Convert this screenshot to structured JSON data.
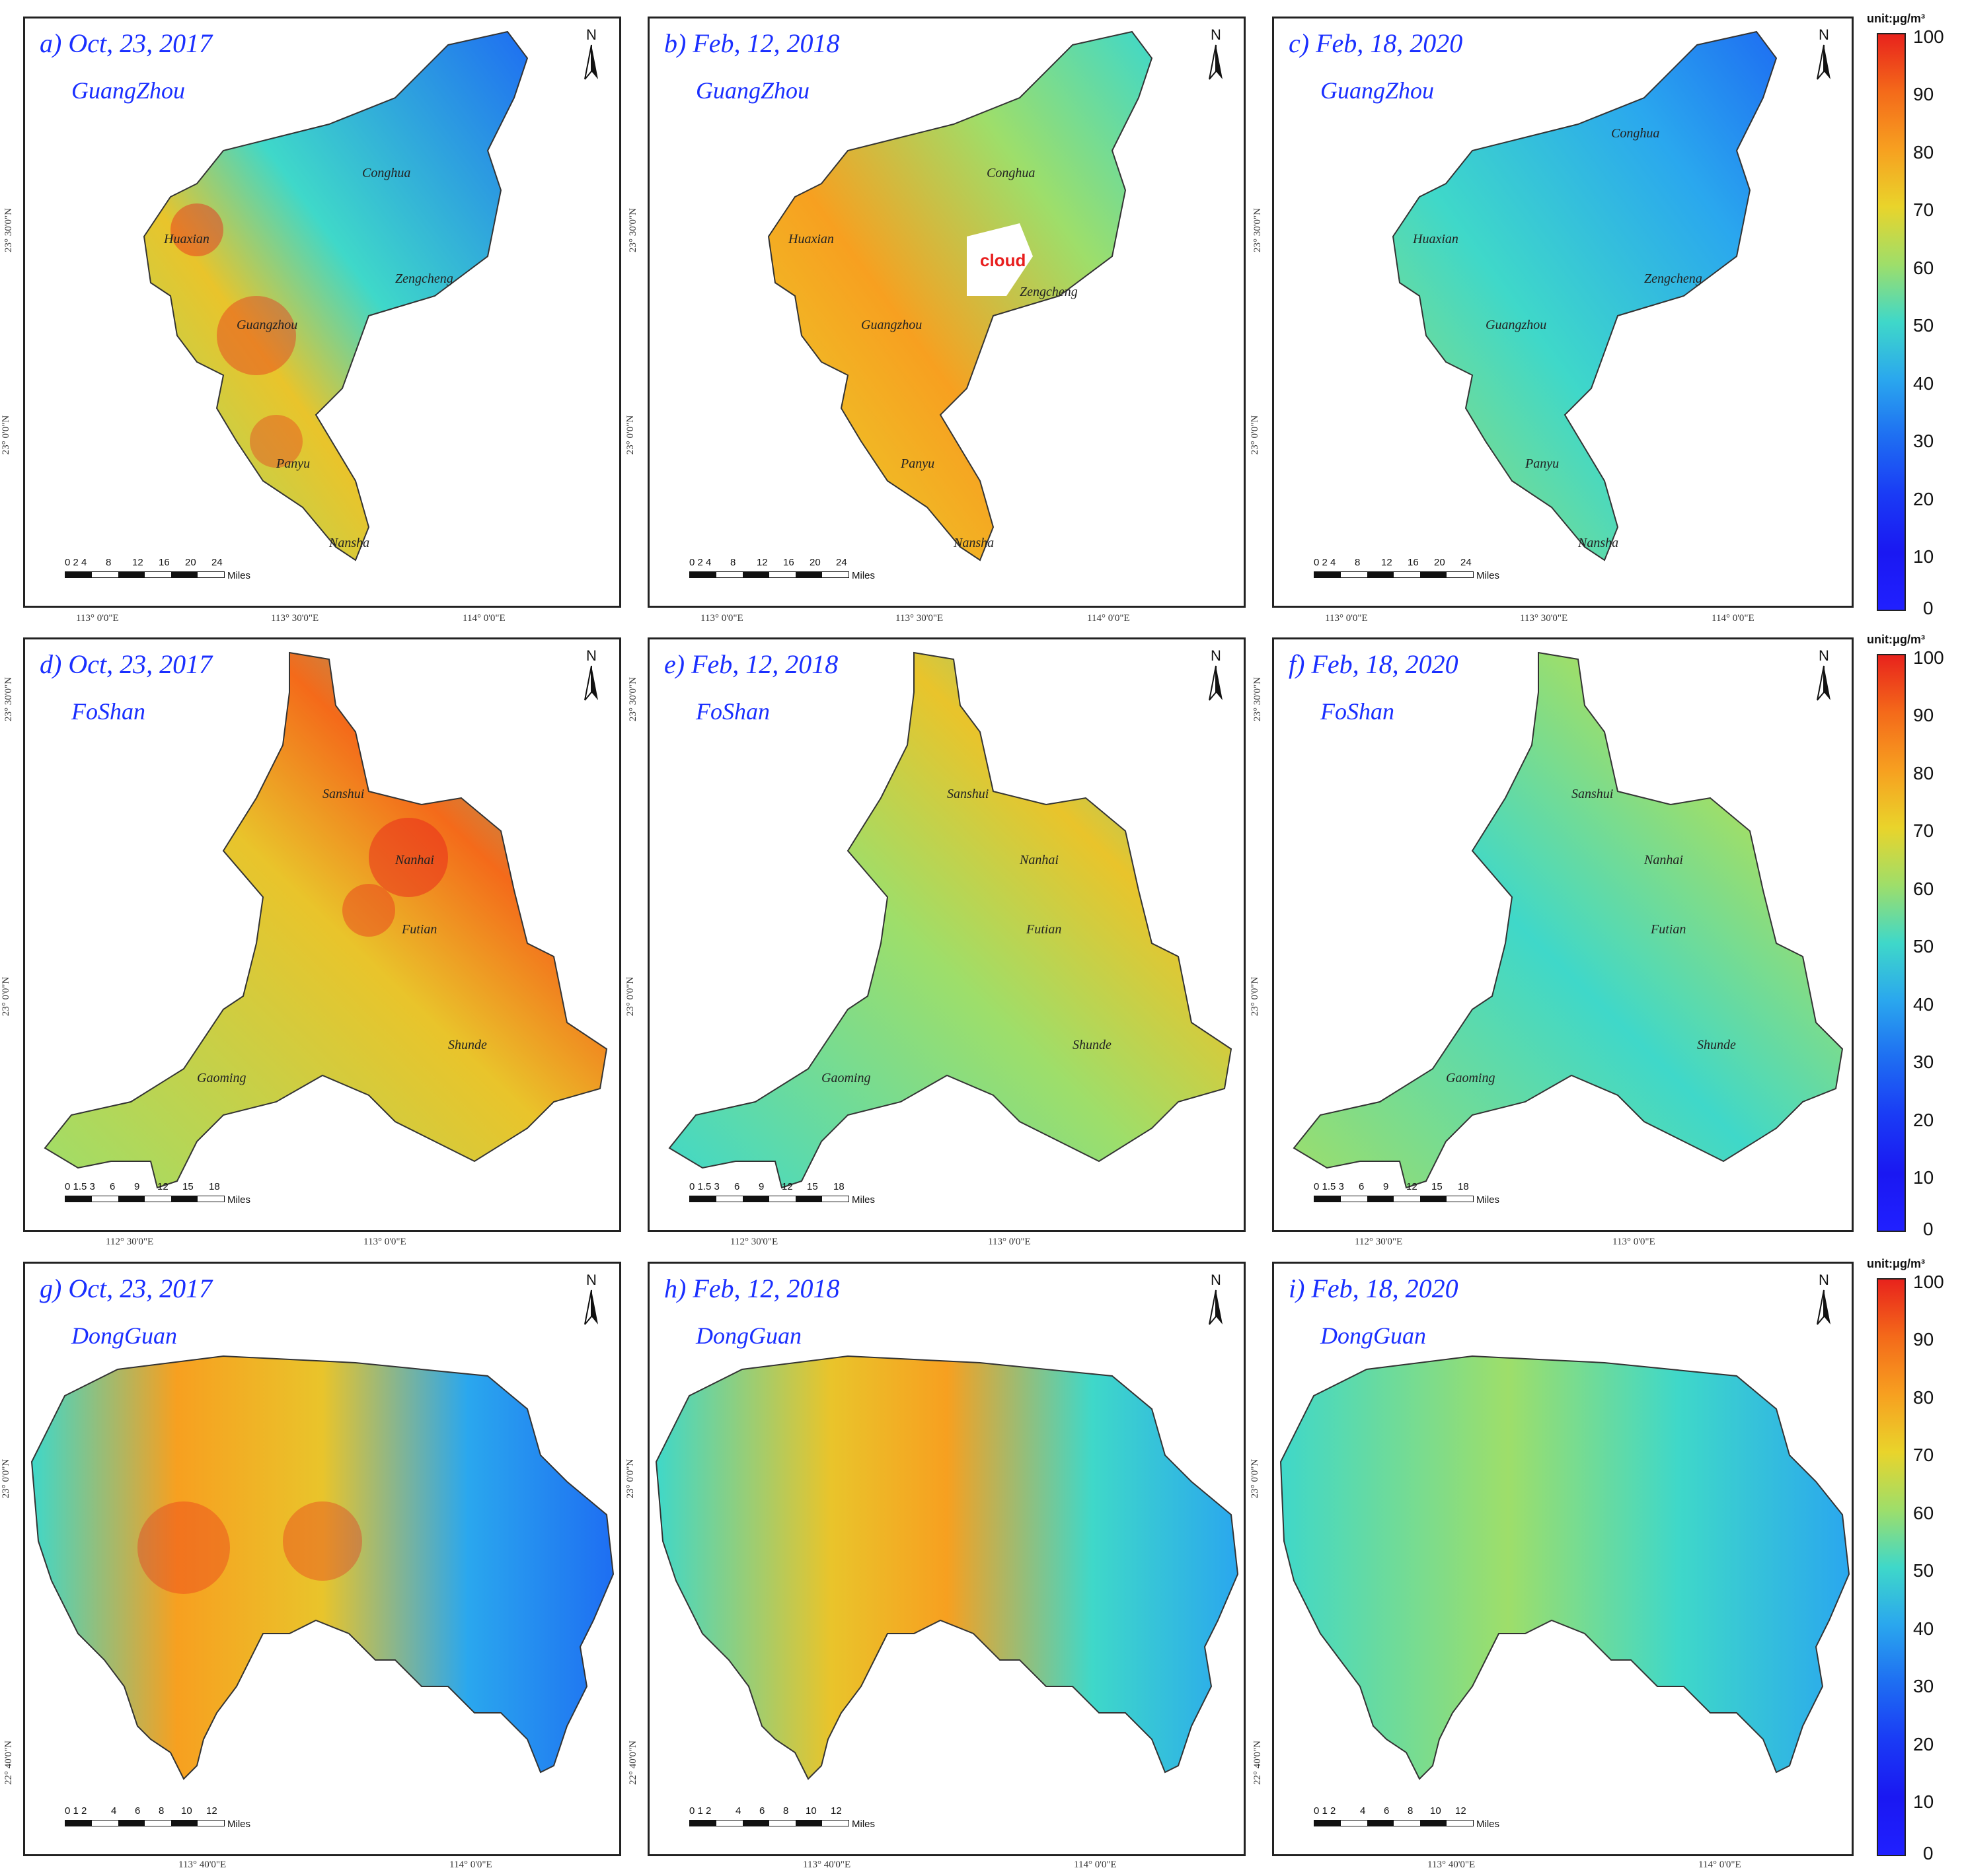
{
  "colors": {
    "title_blue": "#1a2fff",
    "border": "#222222",
    "high": "#e8231c",
    "mid": "#e9d42b",
    "low": "#1a18f2",
    "cyan": "#3fd8c9"
  },
  "colorbar": {
    "unit": "unit:μg/m³",
    "ticks": [
      "100",
      "90",
      "80",
      "70",
      "60",
      "50",
      "40",
      "30",
      "20",
      "10",
      "0"
    ]
  },
  "north_label": "N",
  "scale_unit": "Miles",
  "rows": [
    {
      "city": "GuangZhou",
      "scale_ticks": [
        "0 2 4",
        "8",
        "12",
        "16",
        "20",
        "24"
      ],
      "lat_labels": [
        "23° 30'0\"N",
        "23° 0'0\"N"
      ],
      "lon_labels": [
        "113° 0'0\"E",
        "113° 30'0\"E",
        "114° 0'0\"E"
      ],
      "districts": [
        "Conghua",
        "Huaxian",
        "Zengcheng",
        "Guangzhou",
        "Panyu",
        "Nansha"
      ],
      "panels": [
        {
          "title": "a) Oct, 23, 2017"
        },
        {
          "title": "b) Feb, 12, 2018",
          "cloud": "cloud"
        },
        {
          "title": "c) Feb, 18, 2020"
        }
      ]
    },
    {
      "city": "FoShan",
      "scale_ticks": [
        "0 1.5 3",
        "6",
        "9",
        "12",
        "15",
        "18"
      ],
      "lat_labels": [
        "23° 30'0\"N",
        "23° 0'0\"N"
      ],
      "lon_labels": [
        "112° 30'0\"E",
        "113° 0'0\"E"
      ],
      "districts": [
        "Sanshui",
        "Nanhai",
        "Futian",
        "Gaoming",
        "Shunde"
      ],
      "panels": [
        {
          "title": "d) Oct, 23, 2017"
        },
        {
          "title": "e) Feb, 12, 2018"
        },
        {
          "title": "f) Feb, 18, 2020"
        }
      ]
    },
    {
      "city": "DongGuan",
      "scale_ticks": [
        "0 1 2",
        "4",
        "6",
        "8",
        "10",
        "12"
      ],
      "lat_labels": [
        "23° 0'0\"N",
        "22° 40'0\"N"
      ],
      "lon_labels": [
        "113° 40'0\"E",
        "114° 0'0\"E"
      ],
      "districts": [],
      "panels": [
        {
          "title": "g) Oct, 23, 2017"
        },
        {
          "title": "h) Feb, 12, 2018"
        },
        {
          "title": "i) Feb, 18, 2020"
        }
      ]
    }
  ]
}
